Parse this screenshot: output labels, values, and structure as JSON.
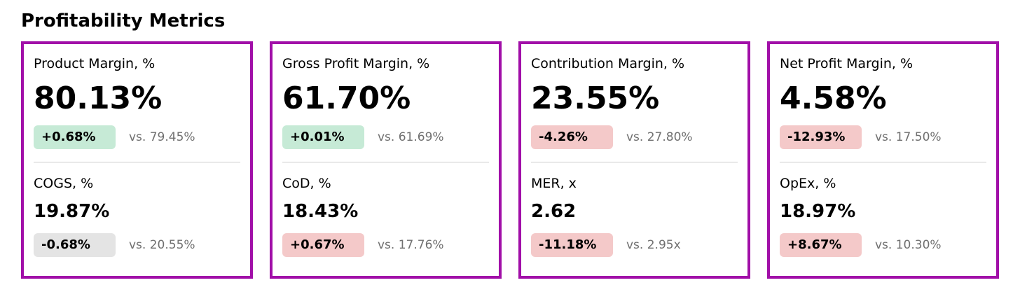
{
  "title": "Profitability Metrics",
  "colors": {
    "card_border": "#a10fa8",
    "positive_badge": "#c6ead6",
    "negative_badge": "#f4c9c9",
    "neutral_badge": "#e4e4e4",
    "muted_text": "#707070"
  },
  "cards": [
    {
      "primary": {
        "label": "Product Margin, %",
        "value": "80.13%",
        "delta": "+0.68%",
        "delta_status": "positive",
        "comparison": "vs. 79.45%"
      },
      "secondary": {
        "label": "COGS, %",
        "value": "19.87%",
        "delta": "-0.68%",
        "delta_status": "neutral",
        "comparison": "vs. 20.55%"
      }
    },
    {
      "primary": {
        "label": "Gross Profit Margin, %",
        "value": "61.70%",
        "delta": "+0.01%",
        "delta_status": "positive",
        "comparison": "vs. 61.69%"
      },
      "secondary": {
        "label": "CoD, %",
        "value": "18.43%",
        "delta": "+0.67%",
        "delta_status": "negative",
        "comparison": "vs. 17.76%"
      }
    },
    {
      "primary": {
        "label": "Contribution Margin, %",
        "value": "23.55%",
        "delta": "-4.26%",
        "delta_status": "negative",
        "comparison": "vs. 27.80%"
      },
      "secondary": {
        "label": "MER, x",
        "value": "2.62",
        "delta": "-11.18%",
        "delta_status": "negative",
        "comparison": "vs. 2.95x"
      }
    },
    {
      "primary": {
        "label": "Net Profit Margin, %",
        "value": "4.58%",
        "delta": "-12.93%",
        "delta_status": "negative",
        "comparison": "vs. 17.50%"
      },
      "secondary": {
        "label": "OpEx, %",
        "value": "18.97%",
        "delta": "+8.67%",
        "delta_status": "negative",
        "comparison": "vs. 10.30%"
      }
    }
  ]
}
